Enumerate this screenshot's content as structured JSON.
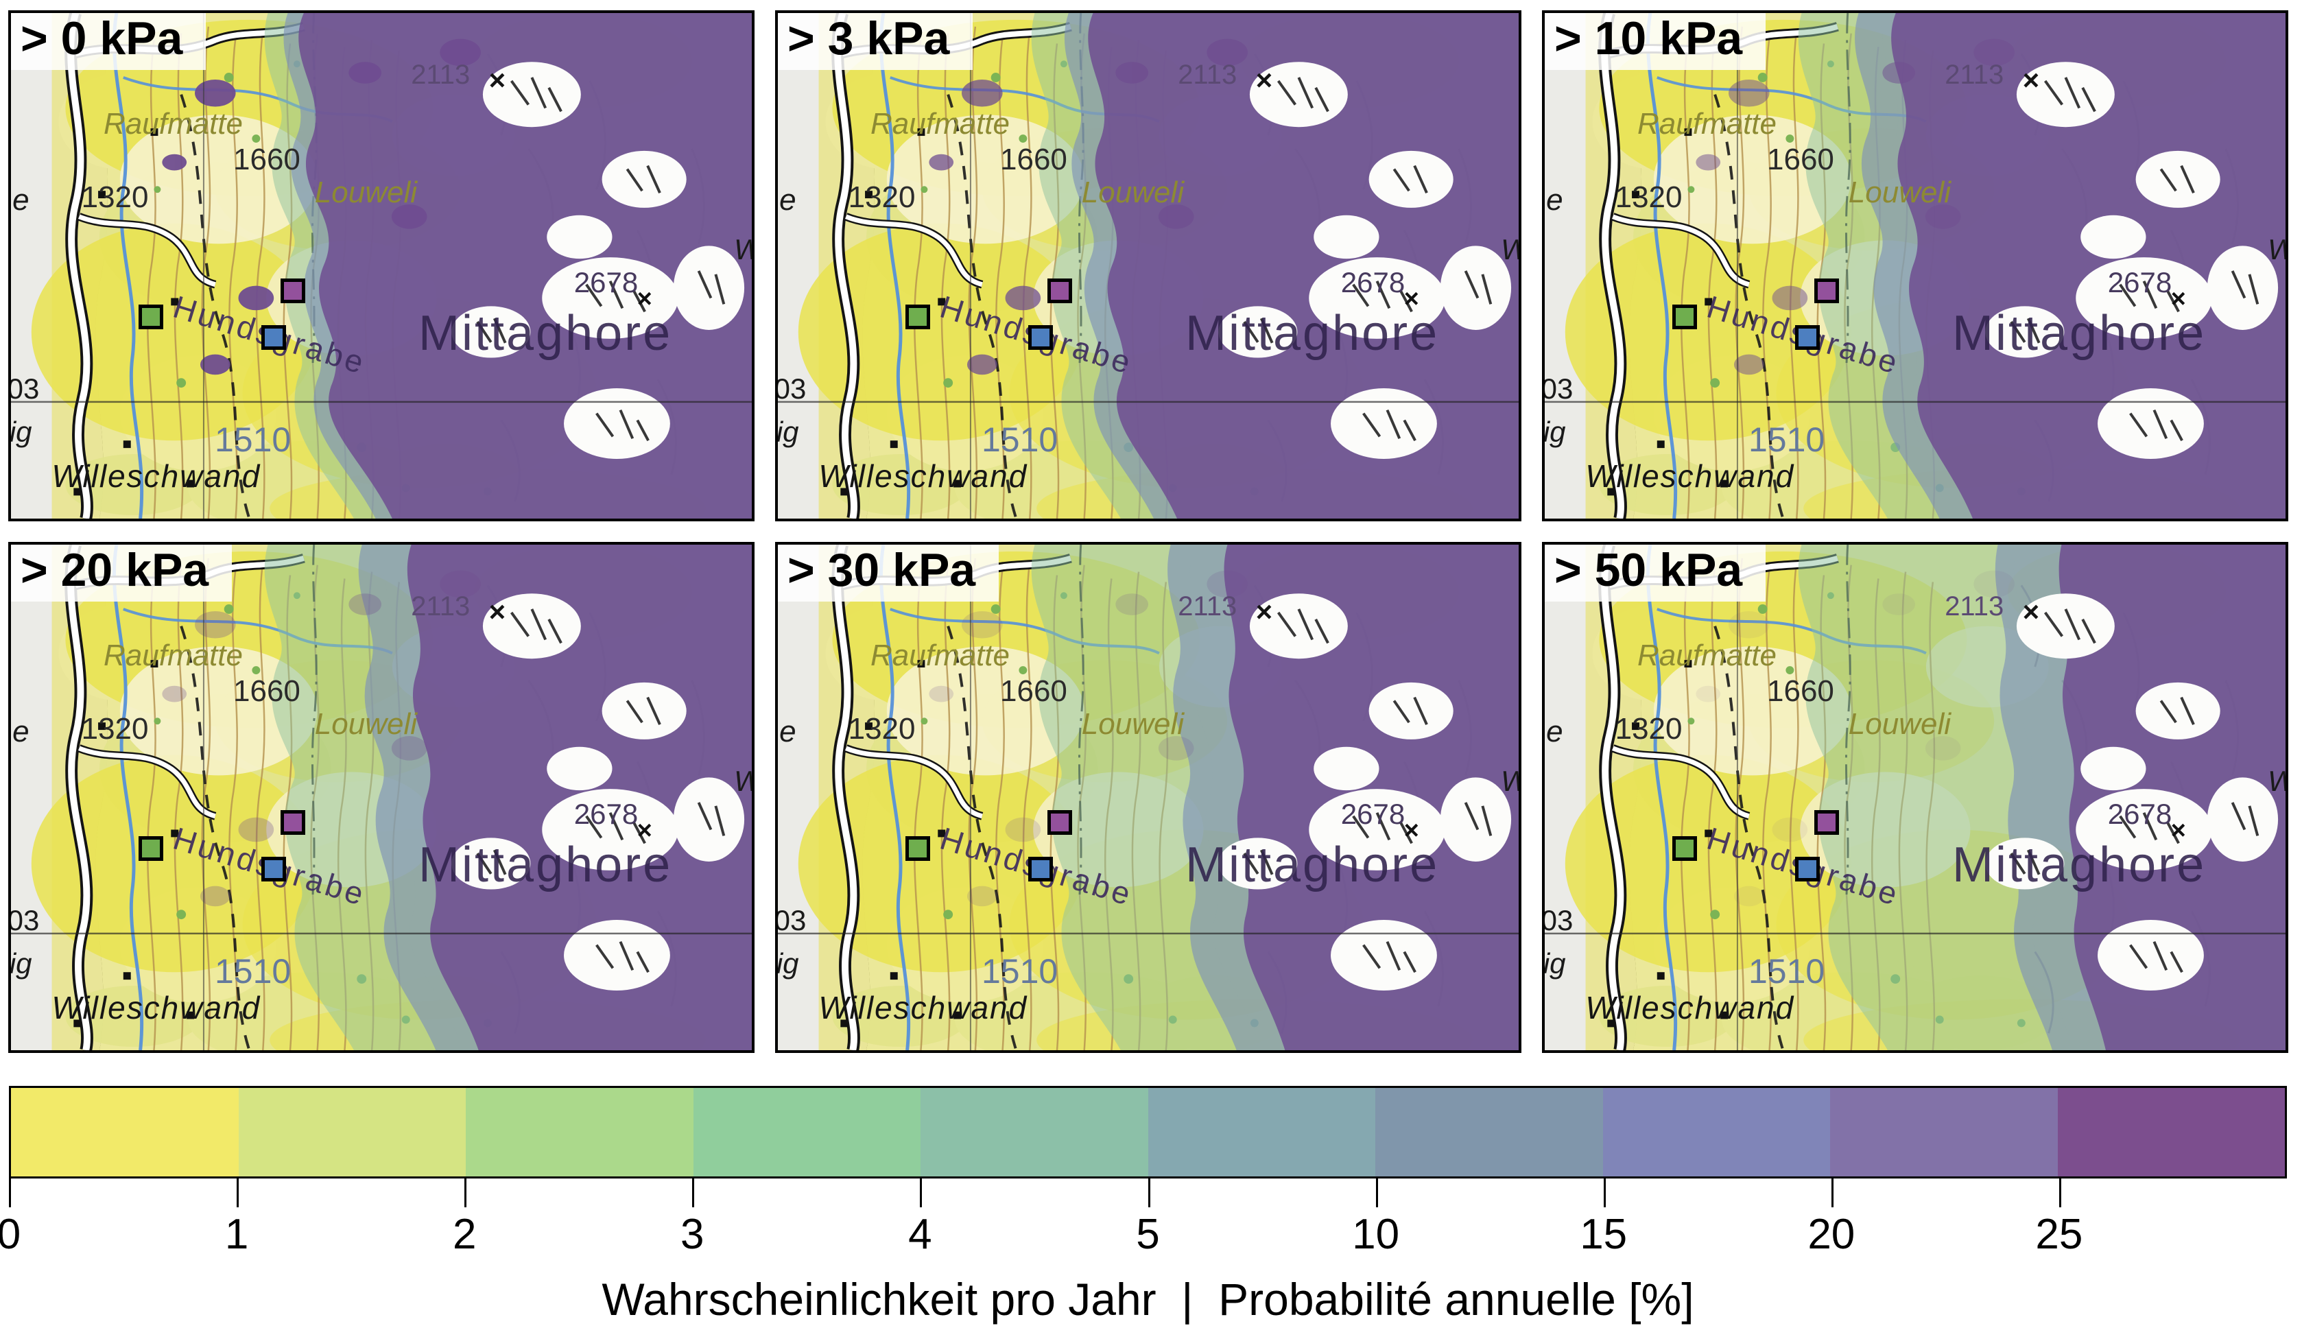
{
  "panels": [
    {
      "label": "> 0 kPa"
    },
    {
      "label": "> 3 kPa"
    },
    {
      "label": "> 10 kPa"
    },
    {
      "label": "> 20 kPa"
    },
    {
      "label": "> 30 kPa"
    },
    {
      "label": "> 50 kPa"
    }
  ],
  "map_labels": {
    "elev_2113": "2113",
    "summit_mark_1": "×",
    "raufmatte": "Raufmatte",
    "elev_1660": "1660",
    "elev_1320": "1320",
    "louweli": "Louweli",
    "elev_2678": "2678",
    "summit_mark_2": "×",
    "mittaghore": "Mittaghore",
    "hundsgrabe": "Hundsgrabe",
    "elev_1510": "1510",
    "willeschwand": "Willeschwand",
    "edge_fragment_e": "e",
    "edge_fragment_03": "03",
    "edge_fragment_ig": "ig",
    "edge_fragment_w": "W"
  },
  "markers": {
    "green": {
      "name": "site-marker-green",
      "color": "#6fae4e"
    },
    "blue": {
      "name": "site-marker-blue",
      "color": "#4d7fc0"
    },
    "purple": {
      "name": "site-marker-purple",
      "color": "#93519c"
    }
  },
  "colorbar": {
    "tick_labels": [
      "0",
      "1",
      "2",
      "3",
      "4",
      "5",
      "10",
      "15",
      "20",
      "25"
    ],
    "segment_colors": [
      "#f2ea69",
      "#d5e483",
      "#abd98b",
      "#90ce9c",
      "#8cc0a8",
      "#85a8b0",
      "#8096ab",
      "#8085b8",
      "#8272a8",
      "#7c4e8e"
    ],
    "caption": "Wahrscheinlichkeit pro Jahr  |  Probabilité annuelle [%]"
  }
}
